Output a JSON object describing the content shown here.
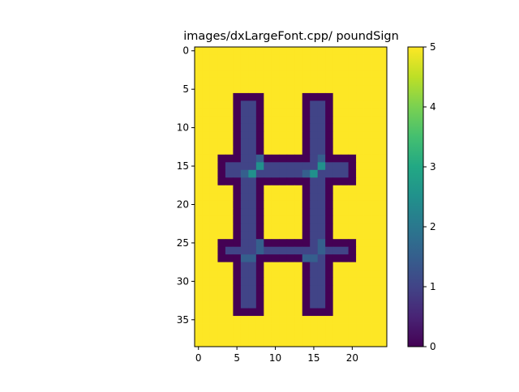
{
  "chart_data": {
    "type": "heatmap",
    "title": "images/dxLargeFont.cpp/ poundSign",
    "rows": 39,
    "cols": 25,
    "xlim": [
      -0.5,
      24.5
    ],
    "ylim": [
      38.5,
      -0.5
    ],
    "origin": "upper",
    "colormap": "viridis",
    "vmin": 0,
    "vmax": 5,
    "xticks": [
      0,
      5,
      10,
      15,
      20
    ],
    "yticks": [
      0,
      5,
      10,
      15,
      20,
      25,
      30,
      35
    ],
    "colorbar_ticks": [
      0,
      1,
      2,
      3,
      4,
      5
    ],
    "background_value": 5,
    "regions": [
      {
        "value": 0,
        "rows": [
          6,
          34
        ],
        "cols": [
          5,
          8
        ]
      },
      {
        "value": 0,
        "rows": [
          6,
          34
        ],
        "cols": [
          14,
          17
        ]
      },
      {
        "value": 0,
        "rows": [
          14,
          17
        ],
        "cols": [
          3,
          20
        ]
      },
      {
        "value": 0,
        "rows": [
          25,
          27
        ],
        "cols": [
          3,
          20
        ]
      },
      {
        "value": 1,
        "rows": [
          7,
          33
        ],
        "cols": [
          6,
          7
        ]
      },
      {
        "value": 1,
        "rows": [
          7,
          33
        ],
        "cols": [
          15,
          16
        ]
      },
      {
        "value": 1,
        "rows": [
          15,
          16
        ],
        "cols": [
          4,
          19
        ]
      },
      {
        "value": 1,
        "rows": [
          26,
          26
        ],
        "cols": [
          4,
          19
        ]
      },
      {
        "value": 1.5,
        "rows": [
          16,
          16
        ],
        "cols": [
          6,
          6
        ]
      },
      {
        "value": 1.5,
        "rows": [
          16,
          16
        ],
        "cols": [
          14,
          14
        ]
      },
      {
        "value": 1.5,
        "rows": [
          14,
          14
        ],
        "cols": [
          8,
          8
        ]
      },
      {
        "value": 1.5,
        "rows": [
          14,
          14
        ],
        "cols": [
          16,
          16
        ]
      },
      {
        "value": 1.5,
        "rows": [
          25,
          25
        ],
        "cols": [
          8,
          8
        ]
      },
      {
        "value": 1.5,
        "rows": [
          25,
          25
        ],
        "cols": [
          16,
          16
        ]
      },
      {
        "value": 1.5,
        "rows": [
          27,
          27
        ],
        "cols": [
          6,
          6
        ]
      },
      {
        "value": 1.5,
        "rows": [
          27,
          27
        ],
        "cols": [
          14,
          14
        ]
      },
      {
        "value": 2.5,
        "rows": [
          16,
          16
        ],
        "cols": [
          7,
          7
        ]
      },
      {
        "value": 2.5,
        "rows": [
          16,
          16
        ],
        "cols": [
          15,
          15
        ]
      },
      {
        "value": 2.5,
        "rows": [
          15,
          15
        ],
        "cols": [
          8,
          8
        ]
      },
      {
        "value": 2.5,
        "rows": [
          15,
          15
        ],
        "cols": [
          16,
          16
        ]
      },
      {
        "value": 1.5,
        "rows": [
          26,
          26
        ],
        "cols": [
          8,
          8
        ]
      },
      {
        "value": 1.5,
        "rows": [
          26,
          26
        ],
        "cols": [
          16,
          16
        ]
      },
      {
        "value": 1.5,
        "rows": [
          27,
          27
        ],
        "cols": [
          7,
          7
        ]
      },
      {
        "value": 1.5,
        "rows": [
          27,
          27
        ],
        "cols": [
          15,
          15
        ]
      }
    ]
  }
}
